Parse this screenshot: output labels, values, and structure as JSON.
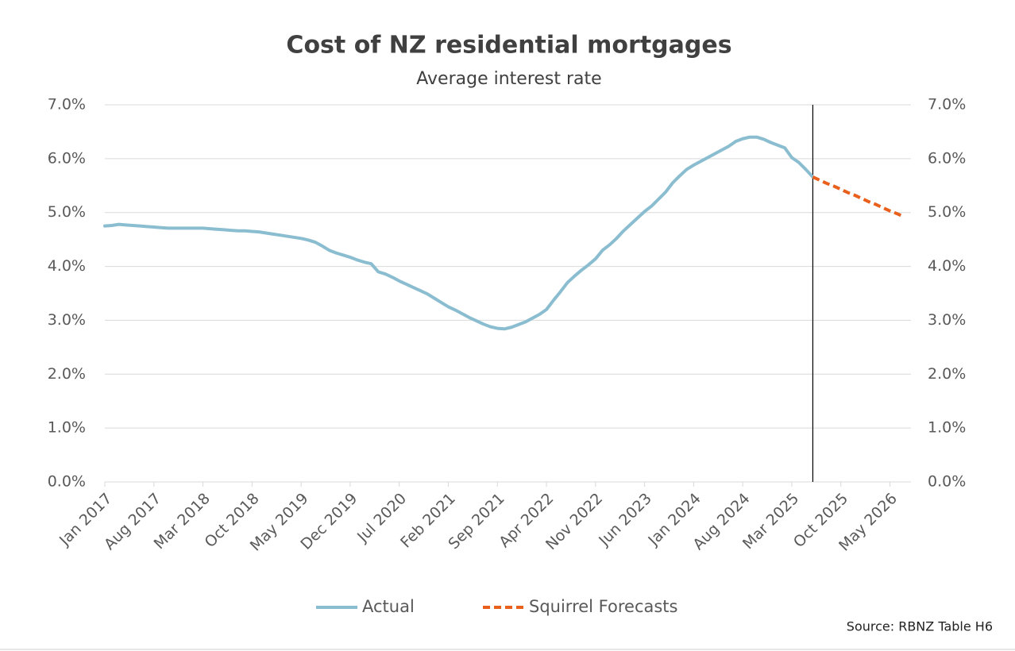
{
  "chart_data": {
    "type": "line",
    "title": "Cost of NZ residential mortgages",
    "subtitle": "Average interest rate",
    "source": "Source:  RBNZ Table H6",
    "categories": [
      "Jan 2017",
      null,
      null,
      null,
      null,
      null,
      null,
      "Aug 2017",
      null,
      null,
      null,
      null,
      null,
      null,
      "Mar 2018",
      null,
      null,
      null,
      null,
      null,
      null,
      "Oct 2018",
      null,
      null,
      null,
      null,
      null,
      null,
      "May 2019",
      null,
      null,
      null,
      null,
      null,
      null,
      "Dec 2019",
      null,
      null,
      null,
      null,
      null,
      null,
      "Jul 2020",
      null,
      null,
      null,
      null,
      null,
      null,
      "Feb 2021",
      null,
      null,
      null,
      null,
      null,
      null,
      "Sep 2021",
      null,
      null,
      null,
      null,
      null,
      null,
      "Apr 2022",
      null,
      null,
      null,
      null,
      null,
      null,
      "Nov 2022",
      null,
      null,
      null,
      null,
      null,
      null,
      "Jun 2023",
      null,
      null,
      null,
      null,
      null,
      null,
      "Jan 2024",
      null,
      null,
      null,
      null,
      null,
      null,
      "Aug 2024",
      null,
      null,
      null,
      null,
      null,
      null,
      "Mar 2025",
      null,
      null,
      null,
      null,
      null,
      null,
      "Oct 2025",
      null,
      null,
      null,
      null,
      null,
      null,
      "May 2026",
      null,
      null
    ],
    "series": [
      {
        "name": "Actual",
        "color": "#8bbdd0",
        "dashed": false,
        "values": [
          4.75,
          4.76,
          4.78,
          4.77,
          4.76,
          4.75,
          4.74,
          4.73,
          4.72,
          4.71,
          4.71,
          4.71,
          4.71,
          4.71,
          4.71,
          4.7,
          4.69,
          4.68,
          4.67,
          4.66,
          4.66,
          4.65,
          4.64,
          4.62,
          4.6,
          4.58,
          4.56,
          4.54,
          4.52,
          4.49,
          4.45,
          4.38,
          4.3,
          4.25,
          4.21,
          4.17,
          4.12,
          4.08,
          4.05,
          3.9,
          3.86,
          3.8,
          3.73,
          3.67,
          3.61,
          3.55,
          3.49,
          3.41,
          3.33,
          3.25,
          3.19,
          3.12,
          3.05,
          2.99,
          2.93,
          2.88,
          2.85,
          2.84,
          2.87,
          2.92,
          2.97,
          3.04,
          3.11,
          3.2,
          3.37,
          3.53,
          3.7,
          3.82,
          3.93,
          4.03,
          4.14,
          4.3,
          4.4,
          4.52,
          4.66,
          4.78,
          4.9,
          5.02,
          5.12,
          5.25,
          5.38,
          5.55,
          5.68,
          5.8,
          5.88,
          5.95,
          6.02,
          6.09,
          6.16,
          6.23,
          6.32,
          6.37,
          6.4,
          6.4,
          6.36,
          6.3,
          6.25,
          6.2,
          6.02,
          5.93,
          5.8,
          5.66,
          null,
          null,
          null,
          null,
          null,
          null,
          null,
          null,
          null,
          null,
          null,
          null,
          null
        ]
      },
      {
        "name": "Squirrel Forecasts",
        "color": "#e8601c",
        "dashed": true,
        "values": [
          null,
          null,
          null,
          null,
          null,
          null,
          null,
          null,
          null,
          null,
          null,
          null,
          null,
          null,
          null,
          null,
          null,
          null,
          null,
          null,
          null,
          null,
          null,
          null,
          null,
          null,
          null,
          null,
          null,
          null,
          null,
          null,
          null,
          null,
          null,
          null,
          null,
          null,
          null,
          null,
          null,
          null,
          null,
          null,
          null,
          null,
          null,
          null,
          null,
          null,
          null,
          null,
          null,
          null,
          null,
          null,
          null,
          null,
          null,
          null,
          null,
          null,
          null,
          null,
          null,
          null,
          null,
          null,
          null,
          null,
          null,
          null,
          null,
          null,
          null,
          null,
          null,
          null,
          null,
          null,
          null,
          null,
          null,
          null,
          null,
          null,
          null,
          null,
          null,
          null,
          null,
          null,
          null,
          null,
          null,
          null,
          null,
          null,
          null,
          null,
          null,
          5.66,
          5.6,
          5.54,
          5.49,
          5.43,
          5.37,
          5.32,
          5.26,
          5.2,
          5.15,
          5.09,
          5.03,
          4.98,
          4.92
        ]
      }
    ],
    "ylim": [
      0,
      7
    ],
    "yticks": [
      {
        "value": 0,
        "label": "0.0%"
      },
      {
        "value": 1,
        "label": "1.0%"
      },
      {
        "value": 2,
        "label": "2.0%"
      },
      {
        "value": 3,
        "label": "3.0%"
      },
      {
        "value": 4,
        "label": "4.0%"
      },
      {
        "value": 5,
        "label": "5.0%"
      },
      {
        "value": 6,
        "label": "6.0%"
      },
      {
        "value": 7,
        "label": "7.0%"
      }
    ],
    "y2lim": [
      0,
      7
    ],
    "y2ticks": [
      {
        "value": 0,
        "label": "0.0%"
      },
      {
        "value": 1,
        "label": "1.0%"
      },
      {
        "value": 2,
        "label": "2.0%"
      },
      {
        "value": 3,
        "label": "3.0%"
      },
      {
        "value": 4,
        "label": "4.0%"
      },
      {
        "value": 5,
        "label": "5.0%"
      },
      {
        "value": 6,
        "label": "6.0%"
      },
      {
        "value": 7,
        "label": "7.0%"
      }
    ],
    "grid": true,
    "legend": "bottom"
  }
}
